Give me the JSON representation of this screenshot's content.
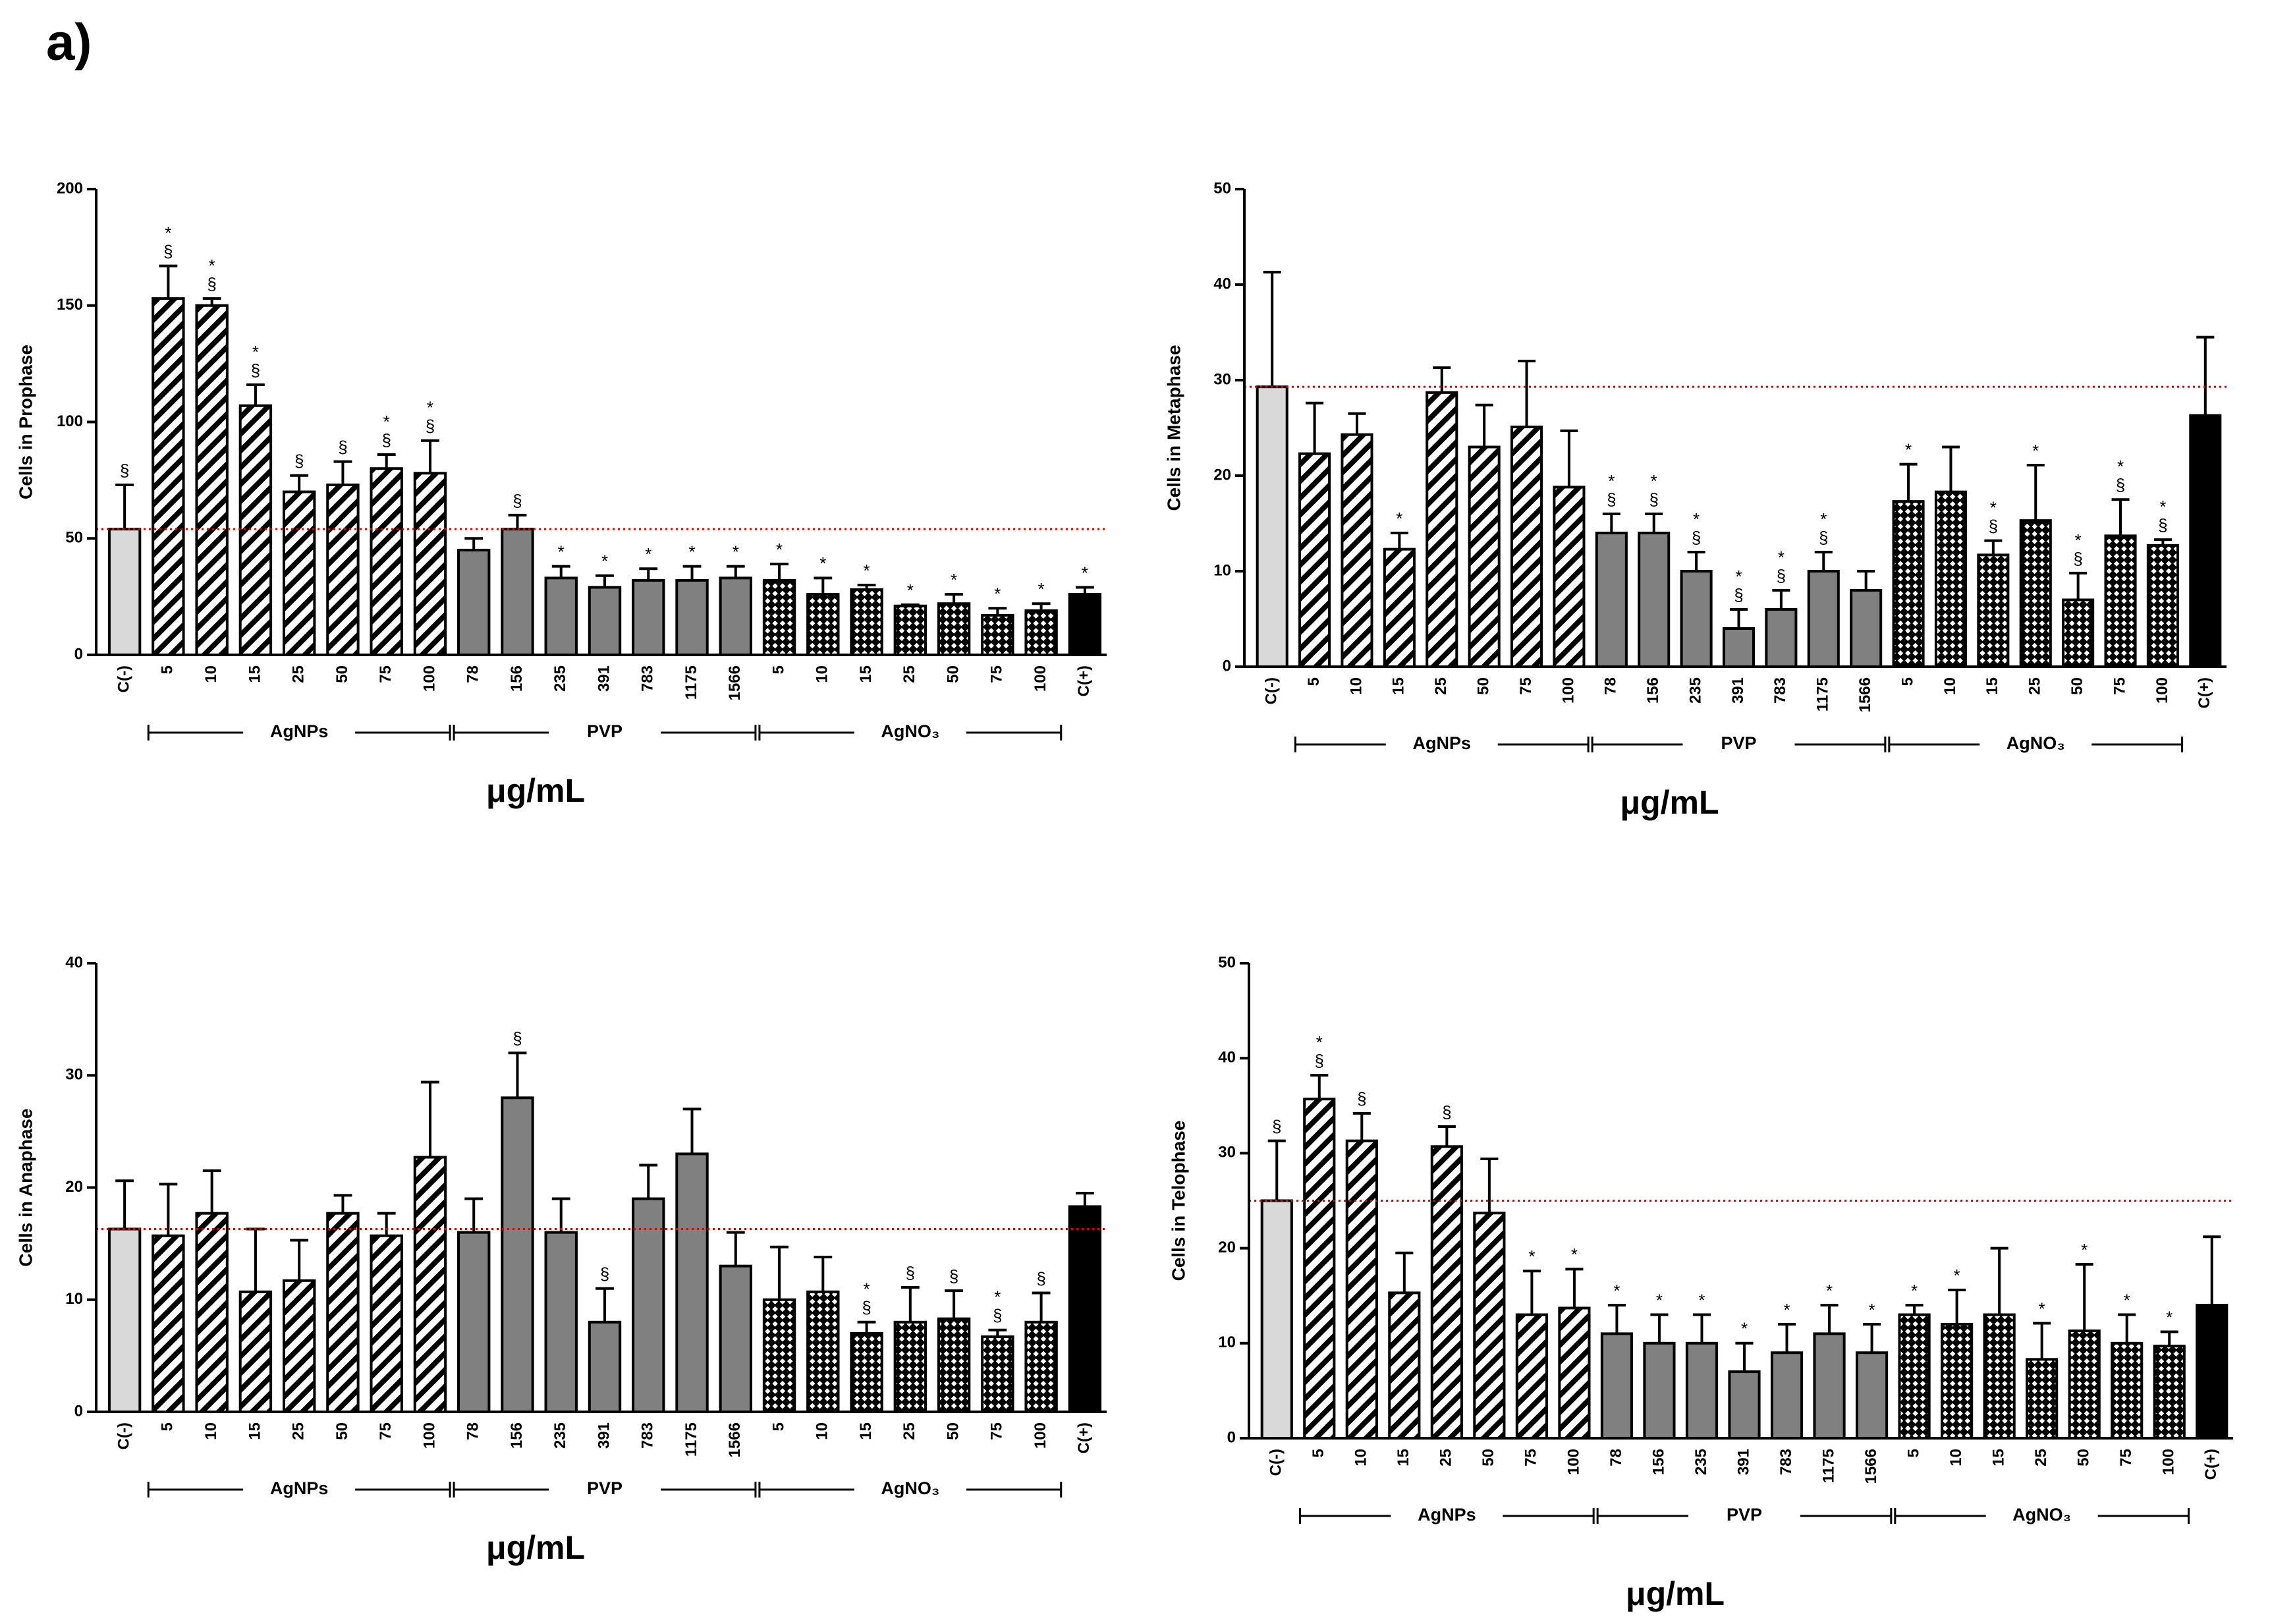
{
  "panel_label": "a)",
  "chart_data": [
    {
      "type": "bar",
      "y_label": "Cells in Prophase",
      "x_label": "μg/mL",
      "categories": [
        "C(-)",
        "5",
        "10",
        "15",
        "25",
        "50",
        "75",
        "100",
        "78",
        "156",
        "235",
        "391",
        "783",
        "1175",
        "1566",
        "5",
        "10",
        "15",
        "25",
        "50",
        "75",
        "100",
        "C(+)"
      ],
      "groups": [
        "AgNPs",
        "PVP",
        "AgNO₃"
      ],
      "values": [
        54,
        153,
        150,
        107,
        70,
        73,
        80,
        78,
        45,
        54,
        33,
        29,
        32,
        32,
        33,
        32,
        26,
        28,
        21,
        22,
        17,
        19,
        26
      ],
      "errors": [
        19,
        14,
        3,
        9,
        7,
        10,
        6,
        14,
        5,
        6,
        5,
        5,
        5,
        6,
        5,
        7,
        7,
        2,
        0.5,
        4,
        3,
        3,
        3
      ],
      "annotations": [
        [
          "§"
        ],
        [
          "*",
          "§"
        ],
        [
          "*",
          "§"
        ],
        [
          "*",
          "§"
        ],
        [
          "§"
        ],
        [
          "§"
        ],
        [
          "*",
          "§"
        ],
        [
          "*",
          "§"
        ],
        [],
        [
          "§"
        ],
        [
          "*"
        ],
        [
          "*"
        ],
        [
          "*"
        ],
        [
          "*"
        ],
        [
          "*"
        ],
        [
          "*"
        ],
        [
          "*"
        ],
        [
          "*"
        ],
        [
          "*"
        ],
        [
          "*"
        ],
        [
          "*"
        ],
        [
          "*"
        ],
        [
          "*"
        ]
      ],
      "fill_styles": [
        "light",
        "hatch",
        "hatch",
        "hatch",
        "hatch",
        "hatch",
        "hatch",
        "hatch",
        "gray",
        "gray",
        "gray",
        "gray",
        "gray",
        "gray",
        "gray",
        "check",
        "check",
        "check",
        "check",
        "check",
        "check",
        "check",
        "black"
      ],
      "reference_line_color": "#e00000",
      "ylim": [
        0,
        200
      ],
      "yticks": [
        0,
        50,
        100,
        150,
        200
      ]
    },
    {
      "type": "bar",
      "y_label": "Cells in Metaphase",
      "x_label": "μg/mL",
      "categories": [
        "C(-)",
        "5",
        "10",
        "15",
        "25",
        "50",
        "75",
        "100",
        "78",
        "156",
        "235",
        "391",
        "783",
        "1175",
        "1566",
        "5",
        "10",
        "15",
        "25",
        "50",
        "75",
        "100",
        "C(+)"
      ],
      "groups": [
        "AgNPs",
        "PVP",
        "AgNO₃"
      ],
      "values": [
        29.3,
        22.3,
        24.3,
        12.3,
        28.7,
        23,
        25.1,
        18.8,
        14,
        14,
        10,
        4,
        6,
        10,
        8,
        17.3,
        18.3,
        11.7,
        15.3,
        7,
        13.7,
        12.7,
        26.3
      ],
      "errors": [
        12,
        5.3,
        2.2,
        1.7,
        2.6,
        4.4,
        6.9,
        5.9,
        2,
        2,
        2,
        2,
        2,
        2,
        2,
        3.9,
        4.7,
        1.5,
        5.8,
        2.8,
        3.8,
        0.6,
        8.2
      ],
      "annotations": [
        [],
        [],
        [],
        [
          "*"
        ],
        [],
        [],
        [],
        [],
        [
          "*",
          "§"
        ],
        [
          "*",
          "§"
        ],
        [
          "*",
          "§"
        ],
        [
          "*",
          "§"
        ],
        [
          "*",
          "§"
        ],
        [
          "*",
          "§"
        ],
        [],
        [
          "*"
        ],
        [],
        [
          "*",
          "§"
        ],
        [
          "*"
        ],
        [
          "*",
          "§"
        ],
        [
          "*",
          "§"
        ],
        [
          "*",
          "§"
        ],
        []
      ],
      "fill_styles": [
        "light",
        "hatch",
        "hatch",
        "hatch",
        "hatch",
        "hatch",
        "hatch",
        "hatch",
        "gray",
        "gray",
        "gray",
        "gray",
        "gray",
        "gray",
        "gray",
        "check",
        "check",
        "check",
        "check",
        "check",
        "check",
        "check",
        "black"
      ],
      "reference_line_color": "#e00000",
      "ylim": [
        0,
        50
      ],
      "yticks": [
        0,
        10,
        20,
        30,
        40,
        50
      ]
    },
    {
      "type": "bar",
      "y_label": "Cells in Anaphase",
      "x_label": "μg/mL",
      "categories": [
        "C(-)",
        "5",
        "10",
        "15",
        "25",
        "50",
        "75",
        "100",
        "78",
        "156",
        "235",
        "391",
        "783",
        "1175",
        "1566",
        "5",
        "10",
        "15",
        "25",
        "50",
        "75",
        "100",
        "C(+)"
      ],
      "groups": [
        "AgNPs",
        "PVP",
        "AgNO₃"
      ],
      "values": [
        16.3,
        15.7,
        17.7,
        10.7,
        11.7,
        17.7,
        15.7,
        22.7,
        16,
        28,
        16,
        8,
        19,
        23,
        13,
        10,
        10.7,
        7,
        8,
        8.3,
        6.7,
        8,
        18.3
      ],
      "errors": [
        4.3,
        4.6,
        3.8,
        5.6,
        3.6,
        1.6,
        2,
        6.7,
        3,
        4,
        3,
        3,
        3,
        4,
        3,
        4.7,
        3.1,
        1,
        3.1,
        2.5,
        0.6,
        2.6,
        1.2
      ],
      "annotations": [
        [],
        [],
        [],
        [],
        [],
        [],
        [],
        [],
        [],
        [
          "§"
        ],
        [],
        [
          "§"
        ],
        [],
        [],
        [],
        [],
        [],
        [
          "*",
          "§"
        ],
        [
          "§"
        ],
        [
          "§"
        ],
        [
          "*",
          "§"
        ],
        [
          "§"
        ],
        []
      ],
      "fill_styles": [
        "light",
        "hatch",
        "hatch",
        "hatch",
        "hatch",
        "hatch",
        "hatch",
        "hatch",
        "gray",
        "gray",
        "gray",
        "gray",
        "gray",
        "gray",
        "gray",
        "check",
        "check",
        "check",
        "check",
        "check",
        "check",
        "check",
        "black"
      ],
      "reference_line_color": "#e00000",
      "ylim": [
        0,
        40
      ],
      "yticks": [
        0,
        10,
        20,
        30,
        40
      ]
    },
    {
      "type": "bar",
      "y_label": "Cells in Telophase",
      "x_label": "μg/mL",
      "categories": [
        "C(-)",
        "5",
        "10",
        "15",
        "25",
        "50",
        "75",
        "100",
        "78",
        "156",
        "235",
        "391",
        "783",
        "1175",
        "1566",
        "5",
        "10",
        "15",
        "25",
        "50",
        "75",
        "100",
        "C(+)"
      ],
      "groups": [
        "AgNPs",
        "PVP",
        "AgNO₃"
      ],
      "values": [
        25,
        35.7,
        31.3,
        15.3,
        30.7,
        23.7,
        13,
        13.7,
        11,
        10,
        10,
        7,
        9,
        11,
        9,
        13,
        12,
        13,
        8.3,
        11.3,
        10,
        9.7,
        14
      ],
      "errors": [
        6.3,
        2.5,
        2.9,
        4.2,
        2.1,
        5.7,
        4.6,
        4.1,
        3,
        3,
        3,
        3,
        3,
        3,
        3,
        1,
        3.6,
        7,
        3.8,
        7,
        3,
        1.5,
        7.2
      ],
      "annotations": [
        [
          "§"
        ],
        [
          "*",
          "§"
        ],
        [
          "§"
        ],
        [],
        [
          "§"
        ],
        [],
        [
          "*"
        ],
        [
          "*"
        ],
        [
          "*"
        ],
        [
          "*"
        ],
        [
          "*"
        ],
        [
          "*"
        ],
        [
          "*"
        ],
        [
          "*"
        ],
        [
          "*"
        ],
        [
          "*"
        ],
        [
          "*"
        ],
        [],
        [
          "*"
        ],
        [
          "*"
        ],
        [
          "*"
        ],
        [
          "*"
        ],
        []
      ],
      "fill_styles": [
        "light",
        "hatch",
        "hatch",
        "hatch",
        "hatch",
        "hatch",
        "hatch",
        "hatch",
        "gray",
        "gray",
        "gray",
        "gray",
        "gray",
        "gray",
        "gray",
        "check",
        "check",
        "check",
        "check",
        "check",
        "check",
        "check",
        "black"
      ],
      "reference_line_color": "#e00000",
      "ylim": [
        0,
        50
      ],
      "yticks": [
        0,
        10,
        20,
        30,
        40,
        50
      ]
    }
  ]
}
